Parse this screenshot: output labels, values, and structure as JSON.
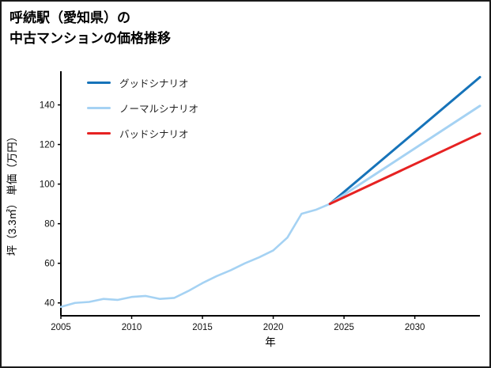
{
  "header": {
    "title_line1": "呼続駅（愛知県）の",
    "title_line2": "中古マンションの価格推移"
  },
  "chart_data": {
    "type": "line",
    "title": "呼続駅（愛知県）の中古マンションの価格推移",
    "xlabel": "年",
    "ylabel": "坪（3.3㎡） 単価（万円）",
    "xlim": [
      2005,
      2034.6
    ],
    "ylim": [
      33.5,
      157
    ],
    "xticks": [
      2005,
      2010,
      2015,
      2020,
      2025,
      2030
    ],
    "yticks": [
      40,
      60,
      80,
      100,
      120,
      140
    ],
    "grid": false,
    "legend_position": "upper-left",
    "axis_color": "#000000",
    "series": [
      {
        "id": "historical-price",
        "label": "",
        "color": "#a5d2f3",
        "width": 2.6,
        "x": [
          2005,
          2006,
          2007,
          2008,
          2009,
          2010,
          2011,
          2012,
          2013,
          2014,
          2015,
          2016,
          2017,
          2018,
          2019,
          2020,
          2021,
          2022,
          2023,
          2024
        ],
        "y": [
          38,
          40,
          40.5,
          42,
          41.5,
          43,
          43.5,
          42,
          42.5,
          46,
          50,
          53.5,
          56.5,
          60,
          63,
          66.5,
          73,
          85,
          87,
          90
        ]
      },
      {
        "id": "good-scenario",
        "label": "グッドシナリオ",
        "color": "#1673b9",
        "width": 3,
        "x": [
          2024,
          2034.6
        ],
        "y": [
          90,
          154
        ]
      },
      {
        "id": "normal-scenario",
        "label": "ノーマルシナリオ",
        "color": "#a5d2f3",
        "width": 3,
        "x": [
          2024,
          2034.6
        ],
        "y": [
          90,
          139.5
        ]
      },
      {
        "id": "bad-scenario",
        "label": "バッドシナリオ",
        "color": "#e62222",
        "width": 3,
        "x": [
          2024,
          2034.6
        ],
        "y": [
          90,
          125.5
        ]
      }
    ],
    "legend": [
      {
        "id": "good",
        "label": "グッドシナリオ",
        "color": "#1673b9"
      },
      {
        "id": "normal",
        "label": "ノーマルシナリオ",
        "color": "#a5d2f3"
      },
      {
        "id": "bad",
        "label": "バッドシナリオ",
        "color": "#e62222"
      }
    ]
  }
}
